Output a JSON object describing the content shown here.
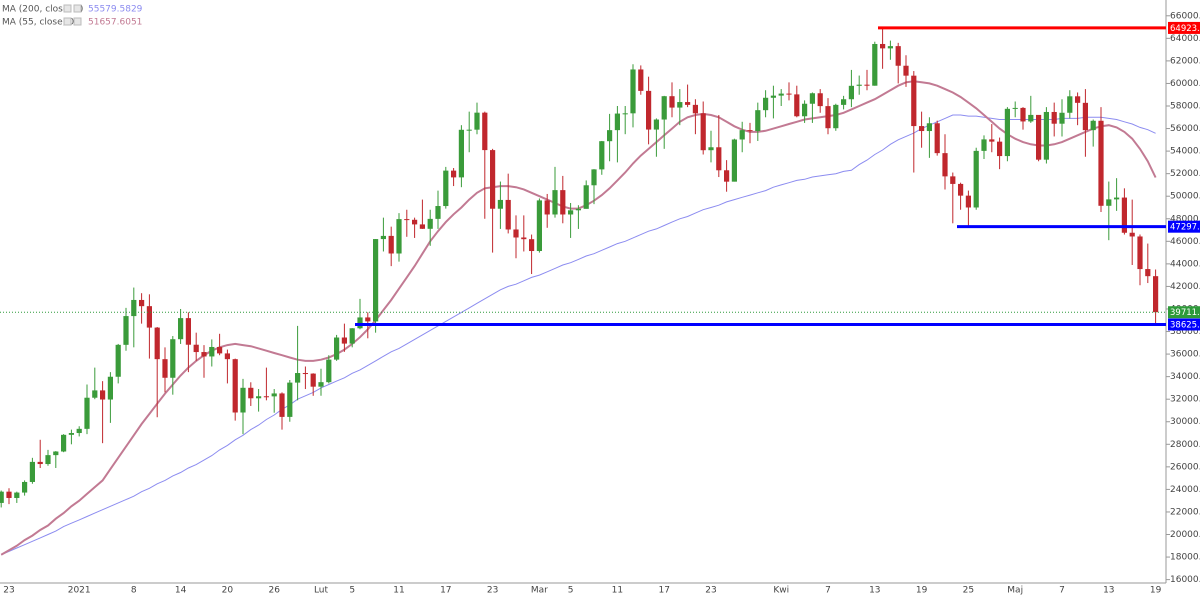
{
  "chart_data": {
    "type": "candlestick",
    "categories": [
      null,
      "23",
      null,
      null,
      null,
      null,
      null,
      null,
      null,
      null,
      "2021",
      null,
      null,
      null,
      null,
      null,
      null,
      "8",
      null,
      null,
      null,
      null,
      null,
      "14",
      null,
      null,
      null,
      null,
      null,
      "20",
      null,
      null,
      null,
      null,
      null,
      "26",
      null,
      null,
      null,
      null,
      null,
      "Lut",
      null,
      null,
      null,
      "5",
      null,
      null,
      null,
      null,
      null,
      "11",
      null,
      null,
      null,
      null,
      null,
      "17",
      null,
      null,
      null,
      null,
      null,
      "23",
      null,
      null,
      null,
      null,
      null,
      "Mar",
      null,
      null,
      null,
      "5",
      null,
      null,
      null,
      null,
      null,
      "11",
      null,
      null,
      null,
      null,
      null,
      "17",
      null,
      null,
      null,
      null,
      null,
      "23",
      null,
      null,
      null,
      null,
      null,
      null,
      null,
      null,
      "Kwi",
      null,
      null,
      null,
      null,
      null,
      "7",
      null,
      null,
      null,
      null,
      null,
      "13",
      null,
      null,
      null,
      null,
      null,
      "19",
      null,
      null,
      null,
      null,
      null,
      "25",
      null,
      null,
      null,
      null,
      null,
      "Maj",
      null,
      null,
      null,
      null,
      null,
      "7",
      null,
      null,
      null,
      null,
      null,
      "13",
      null,
      null,
      null,
      null,
      null,
      "19"
    ],
    "open": [
      22800,
      23800,
      23240,
      23720,
      24660,
      26440,
      26250,
      27040,
      27360,
      28840,
      29000,
      29370,
      32130,
      32780,
      31970,
      33990,
      36820,
      39370,
      40800,
      40250,
      38350,
      35550,
      33900,
      37320,
      39190,
      36830,
      36180,
      35790,
      36630,
      36060,
      35550,
      30820,
      33010,
      32080,
      32260,
      32250,
      32510,
      30430,
      33470,
      34320,
      34270,
      33110,
      33510,
      35510,
      37470,
      36930,
      38290,
      39250,
      38900,
      46200,
      46480,
      44920,
      47970,
      47910,
      47500,
      47110,
      47990,
      49130,
      52270,
      51670,
      55890,
      55900,
      57410,
      54090,
      48890,
      49670,
      47050,
      46340,
      46190,
      45140,
      49630,
      48380,
      50540,
      48380,
      48750,
      48880,
      50970,
      52380,
      54880,
      55860,
      57330,
      57350,
      61240,
      59340,
      55910,
      56800,
      58870,
      57860,
      58350,
      58100,
      57350,
      54080,
      54340,
      52300,
      51290,
      55030,
      55860,
      55780,
      57630,
      58730,
      58920,
      59100,
      59030,
      57090,
      58200,
      59130,
      57990,
      56030,
      58100,
      58600,
      59790,
      59890,
      59800,
      63500,
      63110,
      63310,
      61570,
      60690,
      56220,
      55780,
      56470,
      53820,
      51760,
      51090,
      50050,
      49000,
      54020,
      55040,
      54840,
      53560,
      57750,
      57830,
      56630,
      57210,
      53240,
      57470,
      56430,
      57400,
      58860,
      58280,
      55860,
      56690,
      49150,
      49720,
      49880,
      46760,
      46430,
      43540,
      42910
    ],
    "high": [
      23900,
      24100,
      23800,
      24800,
      26800,
      28400,
      27500,
      27400,
      28900,
      29300,
      29600,
      33300,
      34800,
      33600,
      34400,
      36900,
      40100,
      41900,
      41400,
      41300,
      38400,
      36600,
      37600,
      40000,
      39700,
      37900,
      36800,
      37300,
      37800,
      36400,
      35600,
      33800,
      33500,
      32900,
      34800,
      32900,
      32600,
      33700,
      38500,
      34900,
      34300,
      34700,
      35900,
      37700,
      38700,
      38300,
      40900,
      39700,
      46200,
      48100,
      47300,
      48500,
      48800,
      48100,
      49700,
      48800,
      50500,
      52600,
      52500,
      56300,
      57500,
      58300,
      57500,
      54200,
      51300,
      52000,
      48300,
      48300,
      46600,
      49800,
      50200,
      52600,
      51800,
      49400,
      49200,
      51400,
      52400,
      54900,
      57300,
      58000,
      58000,
      61700,
      61600,
      60600,
      56900,
      58900,
      60100,
      59500,
      59900,
      58600,
      58400,
      55800,
      57200,
      53200,
      55100,
      56600,
      56500,
      58300,
      59400,
      59800,
      59500,
      60100,
      59800,
      58500,
      59200,
      59500,
      58700,
      58200,
      58900,
      61200,
      60700,
      61200,
      63700,
      64923.45,
      63800,
      63600,
      62500,
      61100,
      57500,
      57000,
      56700,
      55500,
      52100,
      51200,
      50500,
      54300,
      55400,
      56400,
      55200,
      57900,
      58400,
      57900,
      58900,
      57200,
      57900,
      58300,
      58600,
      59400,
      59200,
      59500,
      56800,
      57900,
      51300,
      51600,
      50700,
      49700,
      46600,
      45800,
      43500
    ],
    "low": [
      22400,
      22700,
      22800,
      23450,
      24500,
      25900,
      26100,
      25900,
      27300,
      28000,
      28700,
      28900,
      32000,
      28100,
      29900,
      33400,
      36300,
      36600,
      38700,
      35600,
      30400,
      32600,
      32400,
      36900,
      34400,
      35400,
      33900,
      34900,
      35900,
      33400,
      30100,
      28900,
      31400,
      30900,
      31900,
      30800,
      29300,
      30000,
      31900,
      32900,
      32300,
      32300,
      33400,
      35400,
      36200,
      36600,
      38200,
      37400,
      37900,
      45100,
      43800,
      44200,
      46400,
      46300,
      47100,
      45600,
      47100,
      48900,
      50900,
      50800,
      53900,
      55500,
      48000,
      45000,
      47100,
      46700,
      44500,
      45100,
      43100,
      45000,
      47200,
      48100,
      47600,
      46300,
      47100,
      48900,
      49300,
      51900,
      53100,
      53000,
      55500,
      56100,
      59000,
      54600,
      53500,
      54200,
      57000,
      56300,
      57900,
      55500,
      53700,
      53000,
      51700,
      50400,
      51300,
      53900,
      54700,
      54900,
      57000,
      56900,
      58000,
      58500,
      57000,
      56500,
      56500,
      57400,
      55500,
      55800,
      57700,
      57900,
      59000,
      59400,
      59800,
      61300,
      62100,
      60000,
      59700,
      52100,
      54300,
      53400,
      53600,
      50600,
      47600,
      48800,
      47297.84,
      48800,
      53300,
      53900,
      52400,
      53100,
      57000,
      55900,
      56500,
      53100,
      52900,
      55300,
      55300,
      56900,
      56300,
      53500,
      54400,
      48600,
      46100,
      48700,
      46600,
      43900,
      42100,
      42300,
      38625.98
    ],
    "close": [
      23800,
      23240,
      23720,
      24660,
      26440,
      26250,
      27040,
      27360,
      28840,
      29000,
      29370,
      32130,
      32780,
      31970,
      33990,
      36820,
      39370,
      40800,
      40250,
      38350,
      35550,
      33900,
      37320,
      39190,
      36830,
      36180,
      35790,
      36630,
      36060,
      35550,
      30820,
      33010,
      32080,
      32260,
      32250,
      32510,
      30430,
      33470,
      34320,
      34270,
      33110,
      33510,
      35510,
      37470,
      36930,
      38290,
      39250,
      38900,
      46200,
      46480,
      44920,
      47970,
      47910,
      47500,
      47110,
      47990,
      49130,
      52270,
      51670,
      55890,
      55900,
      57410,
      54090,
      48890,
      49670,
      47050,
      46340,
      46190,
      45140,
      49630,
      48380,
      50540,
      48380,
      48750,
      48880,
      50970,
      52380,
      54880,
      55860,
      57330,
      57350,
      61240,
      59340,
      55910,
      56800,
      58870,
      57860,
      58350,
      58100,
      57350,
      54080,
      54340,
      52300,
      51290,
      55030,
      55860,
      55780,
      57630,
      58730,
      58920,
      59100,
      59030,
      57090,
      58200,
      59130,
      57990,
      56030,
      58100,
      58600,
      59790,
      59890,
      59800,
      63500,
      63110,
      63310,
      61570,
      60690,
      56220,
      55780,
      56470,
      53820,
      51760,
      51090,
      50050,
      49000,
      54020,
      55040,
      54840,
      53560,
      57750,
      57830,
      56630,
      57210,
      53240,
      57470,
      56430,
      57400,
      58860,
      58280,
      55860,
      56690,
      49150,
      49720,
      49880,
      46760,
      46430,
      43540,
      42910,
      39711.86
    ],
    "up_color": "#3a9b3a",
    "down_color": "#c0272d",
    "series": [
      {
        "name": "MA (200, close, 0)",
        "color": "#8c8cf0",
        "values": [
          18200,
          18500,
          18800,
          19100,
          19400,
          19700,
          20000,
          20300,
          20700,
          21000,
          21300,
          21600,
          21900,
          22200,
          22500,
          22800,
          23100,
          23400,
          23800,
          24100,
          24500,
          24800,
          25200,
          25500,
          25900,
          26200,
          26600,
          27000,
          27500,
          27900,
          28400,
          28800,
          29300,
          29700,
          30200,
          30600,
          31100,
          31500,
          32000,
          32300,
          32600,
          33000,
          33300,
          33600,
          33900,
          34300,
          34600,
          35000,
          35400,
          35800,
          36200,
          36500,
          36900,
          37300,
          37700,
          38100,
          38500,
          38900,
          39300,
          39700,
          40100,
          40500,
          40900,
          41300,
          41700,
          42000,
          42200,
          42500,
          42800,
          43000,
          43300,
          43600,
          43900,
          44100,
          44400,
          44700,
          44900,
          45200,
          45500,
          45800,
          46000,
          46300,
          46600,
          46900,
          47100,
          47400,
          47700,
          48000,
          48200,
          48500,
          48800,
          49000,
          49200,
          49500,
          49700,
          49900,
          50100,
          50300,
          50500,
          50800,
          51000,
          51200,
          51400,
          51500,
          51700,
          51800,
          51900,
          52000,
          52200,
          52300,
          52800,
          53200,
          53700,
          54100,
          54600,
          55000,
          55300,
          55600,
          56000,
          56300,
          56600,
          56900,
          57200,
          57200,
          57100,
          57100,
          57000,
          56900,
          56800,
          56800,
          56800,
          56800,
          56800,
          56800,
          56800,
          56800,
          56900,
          56900,
          56900,
          57000,
          57000,
          57000,
          56900,
          56800,
          56600,
          56400,
          56100,
          55900,
          55579.5829
        ]
      },
      {
        "name": "MA (55, close, 0)",
        "color": "#c27a93",
        "values": [
          18200,
          18600,
          19000,
          19500,
          19900,
          20400,
          20800,
          21400,
          21900,
          22500,
          23000,
          23600,
          24200,
          24800,
          25800,
          26800,
          27800,
          28800,
          29800,
          30700,
          31600,
          32500,
          33300,
          34100,
          34800,
          35400,
          35900,
          36300,
          36600,
          36800,
          36900,
          36800,
          36700,
          36500,
          36300,
          36100,
          35900,
          35700,
          35500,
          35400,
          35400,
          35500,
          35700,
          36000,
          36400,
          36900,
          37500,
          38200,
          39000,
          39900,
          40800,
          41800,
          42800,
          43800,
          44900,
          46000,
          46900,
          47700,
          48400,
          49000,
          49700,
          50300,
          50700,
          50800,
          50900,
          50900,
          50800,
          50600,
          50300,
          50000,
          49700,
          49400,
          49100,
          48900,
          48900,
          49200,
          49600,
          50100,
          50700,
          51400,
          52100,
          52900,
          53600,
          54200,
          54800,
          55400,
          56000,
          56600,
          57000,
          57200,
          57300,
          57200,
          57000,
          56600,
          56200,
          55900,
          55700,
          55700,
          55800,
          56000,
          56200,
          56400,
          56600,
          56800,
          56900,
          57000,
          57100,
          57200,
          57400,
          57700,
          58000,
          58300,
          58600,
          59000,
          59400,
          59800,
          60100,
          60200,
          60100,
          60000,
          59800,
          59500,
          59200,
          58800,
          58300,
          57800,
          57200,
          56600,
          56000,
          55500,
          55100,
          54800,
          54600,
          54500,
          54500,
          54600,
          54800,
          55100,
          55400,
          55700,
          56000,
          56200,
          56300,
          56100,
          55700,
          55100,
          54200,
          53100,
          51657.6051
        ]
      }
    ],
    "levels": [
      {
        "value": 64923.45,
        "color": "#ff0000"
      },
      {
        "value": 47297.84,
        "color": "#0000ff"
      },
      {
        "value": 38625.98,
        "color": "#0000ff"
      }
    ],
    "last_price_color": "#2e9a3a",
    "ylim": [
      15700,
      67400
    ],
    "yticks": [
      {
        "value": 16000,
        "label": "16000.00"
      },
      {
        "value": 18000,
        "label": "18000.00"
      },
      {
        "value": 20000,
        "label": "20000.00"
      },
      {
        "value": 22000,
        "label": "22000.00"
      },
      {
        "value": 24000,
        "label": "24000.00"
      },
      {
        "value": 26000,
        "label": "26000.00"
      },
      {
        "value": 28000,
        "label": "28000.00"
      },
      {
        "value": 30000,
        "label": "30000.00"
      },
      {
        "value": 32000,
        "label": "32000.00"
      },
      {
        "value": 34000,
        "label": "34000.00"
      },
      {
        "value": 36000,
        "label": "36000.00"
      },
      {
        "value": 38000,
        "label": "38000.00"
      },
      {
        "value": 40000,
        "label": "40000.00"
      },
      {
        "value": 42000,
        "label": "42000.00"
      },
      {
        "value": 44000,
        "label": "44000.00"
      },
      {
        "value": 46000,
        "label": "46000.00"
      },
      {
        "value": 48000,
        "label": "48000.00"
      },
      {
        "value": 50000,
        "label": "50000.00"
      },
      {
        "value": 52000,
        "label": "52000.00"
      },
      {
        "value": 54000,
        "label": "54000.00"
      },
      {
        "value": 56000,
        "label": "56000.00"
      },
      {
        "value": 58000,
        "label": "58000.00"
      },
      {
        "value": 60000,
        "label": "60000.00"
      },
      {
        "value": 62000,
        "label": "62000.00"
      },
      {
        "value": 64000,
        "label": "64000.00"
      },
      {
        "value": 66000,
        "label": "66000.00"
      }
    ]
  }
}
